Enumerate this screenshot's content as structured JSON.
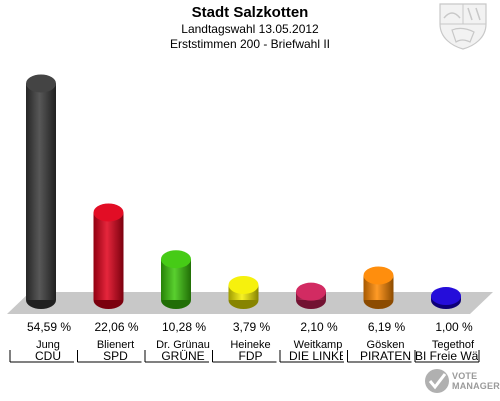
{
  "chart_data": {
    "type": "bar",
    "title": "Stadt Salzkotten",
    "subtitle_lines": [
      "Landtagswahl 13.05.2012",
      "Erststimmen 200 - Briefwahl II"
    ],
    "unit": "%",
    "ylim": [
      0,
      60
    ],
    "grid": false,
    "legend": "none",
    "categories": [
      {
        "candidate": "Jung",
        "party": "CDU"
      },
      {
        "candidate": "Blienert",
        "party": "SPD"
      },
      {
        "candidate": "Dr. Grünau",
        "party": "GRÜNE"
      },
      {
        "candidate": "Heineke",
        "party": "FDP"
      },
      {
        "candidate": "Weitkamp",
        "party": "DIE LINKE"
      },
      {
        "candidate": "Gösken",
        "party": "PIRATEN"
      },
      {
        "candidate": "Tegethof",
        "party": "FBI Freie Wähler"
      }
    ],
    "values": [
      54.59,
      22.06,
      10.28,
      3.79,
      2.1,
      6.19,
      1.0
    ],
    "value_labels": [
      "54,59 %",
      "22,06 %",
      "10,28 %",
      "3,79 %",
      "2,10 %",
      "6,19 %",
      "1,00 %"
    ],
    "colors": [
      "#3a3a3a",
      "#e0001a",
      "#3cc80a",
      "#f5f000",
      "#d0205a",
      "#ff8800",
      "#1a00d8"
    ]
  },
  "branding": {
    "logo_lines": [
      "VOTE",
      "MANAGER"
    ],
    "crest_icon": "nrw-coat-of-arms-icon"
  }
}
